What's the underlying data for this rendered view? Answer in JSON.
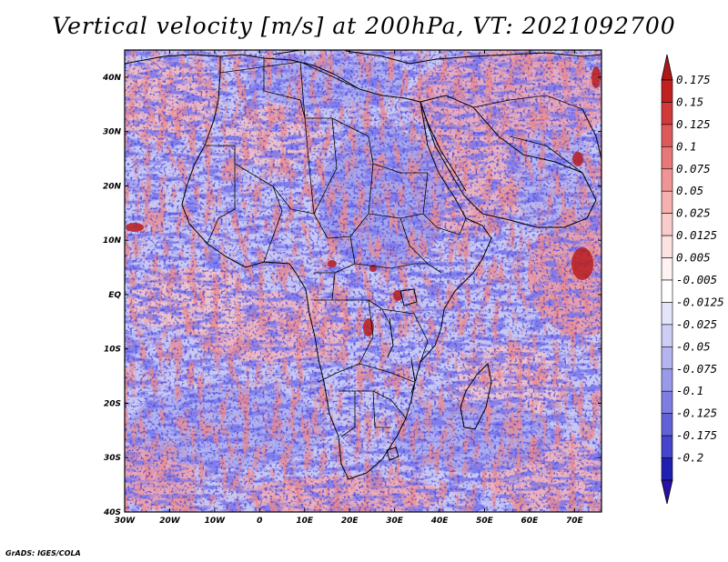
{
  "title": "Vertical velocity [m/s] at 200hPa, VT: 2021092700",
  "credit": "GrADS: IGES/COLA",
  "map": {
    "region": "Africa",
    "lon_range": [
      -30,
      76
    ],
    "lat_range": [
      -40,
      45
    ],
    "x_ticks": [
      {
        "lon": -30,
        "label": "30W"
      },
      {
        "lon": -20,
        "label": "20W"
      },
      {
        "lon": -10,
        "label": "10W"
      },
      {
        "lon": 0,
        "label": "0"
      },
      {
        "lon": 10,
        "label": "10E"
      },
      {
        "lon": 20,
        "label": "20E"
      },
      {
        "lon": 30,
        "label": "30E"
      },
      {
        "lon": 40,
        "label": "40E"
      },
      {
        "lon": 50,
        "label": "50E"
      },
      {
        "lon": 60,
        "label": "60E"
      },
      {
        "lon": 70,
        "label": "70E"
      }
    ],
    "y_ticks": [
      {
        "lat": 40,
        "label": "40N"
      },
      {
        "lat": 30,
        "label": "30N"
      },
      {
        "lat": 20,
        "label": "20N"
      },
      {
        "lat": 10,
        "label": "10N"
      },
      {
        "lat": 0,
        "label": "EQ"
      },
      {
        "lat": -10,
        "label": "10S"
      },
      {
        "lat": -20,
        "label": "20S"
      },
      {
        "lat": -30,
        "label": "30S"
      },
      {
        "lat": -40,
        "label": "40S"
      }
    ]
  },
  "colorbar": {
    "levels": [
      {
        "label": "0.175",
        "color": "#c02020"
      },
      {
        "label": "0.15",
        "color": "#d03a3a"
      },
      {
        "label": "0.125",
        "color": "#de5a5a"
      },
      {
        "label": "0.1",
        "color": "#e87878"
      },
      {
        "label": "0.075",
        "color": "#f09595"
      },
      {
        "label": "0.05",
        "color": "#f5b0b0"
      },
      {
        "label": "0.025",
        "color": "#f9cccc"
      },
      {
        "label": "0.0125",
        "color": "#fce2e2"
      },
      {
        "label": "0.005",
        "color": "#fef2f2"
      },
      {
        "label": "-0.005",
        "color": "#ffffff"
      },
      {
        "label": "-0.0125",
        "color": "#e4e4fb"
      },
      {
        "label": "-0.025",
        "color": "#cdcdf6"
      },
      {
        "label": "-0.05",
        "color": "#b4b4f0"
      },
      {
        "label": "-0.075",
        "color": "#9a9aea"
      },
      {
        "label": "-0.1",
        "color": "#7e7ee2"
      },
      {
        "label": "-0.125",
        "color": "#6262d8"
      },
      {
        "label": "-0.175",
        "color": "#4444cc"
      },
      {
        "label": "-0.2",
        "color": "#2020b0"
      }
    ],
    "top_arrow_color": "#b01818",
    "bottom_arrow_color": "#2a10a8"
  }
}
